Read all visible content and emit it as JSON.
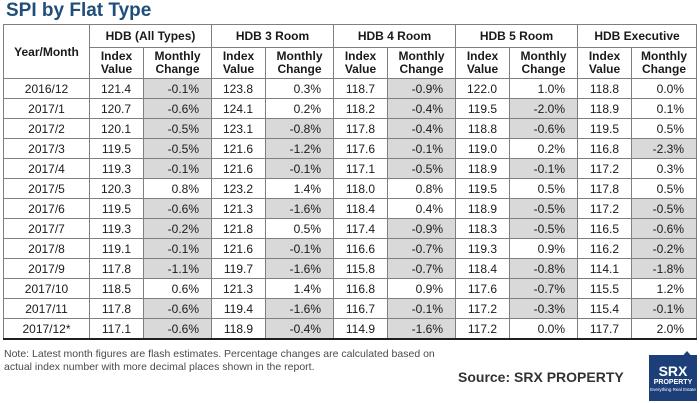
{
  "title": "SPI by Flat Type",
  "header": {
    "year_month": "Year/Month",
    "groups": [
      "HDB (All Types)",
      "HDB 3 Room",
      "HDB 4 Room",
      "HDB 5 Room",
      "HDB Executive"
    ],
    "sub_index": "Index Value",
    "sub_change": "Monthly Change"
  },
  "rows": [
    {
      "date": "2016/12",
      "v": [
        "121.4",
        "-0.1%",
        "123.8",
        "0.3%",
        "118.7",
        "-0.9%",
        "122.0",
        "1.0%",
        "118.8",
        "0.0%"
      ]
    },
    {
      "date": "2017/1",
      "v": [
        "120.7",
        "-0.6%",
        "124.1",
        "0.2%",
        "118.2",
        "-0.4%",
        "119.5",
        "-2.0%",
        "118.9",
        "0.1%"
      ]
    },
    {
      "date": "2017/2",
      "v": [
        "120.1",
        "-0.5%",
        "123.1",
        "-0.8%",
        "117.8",
        "-0.4%",
        "118.8",
        "-0.6%",
        "119.5",
        "0.5%"
      ]
    },
    {
      "date": "2017/3",
      "v": [
        "119.5",
        "-0.5%",
        "121.6",
        "-1.2%",
        "117.6",
        "-0.1%",
        "119.0",
        "0.2%",
        "116.8",
        "-2.3%"
      ]
    },
    {
      "date": "2017/4",
      "v": [
        "119.3",
        "-0.1%",
        "121.6",
        "-0.1%",
        "117.1",
        "-0.5%",
        "118.9",
        "-0.1%",
        "117.2",
        "0.3%"
      ]
    },
    {
      "date": "2017/5",
      "v": [
        "120.3",
        "0.8%",
        "123.2",
        "1.4%",
        "118.0",
        "0.8%",
        "119.5",
        "0.5%",
        "117.8",
        "0.5%"
      ]
    },
    {
      "date": "2017/6",
      "v": [
        "119.5",
        "-0.6%",
        "121.3",
        "-1.6%",
        "118.4",
        "0.4%",
        "118.9",
        "-0.5%",
        "117.2",
        "-0.5%"
      ]
    },
    {
      "date": "2017/7",
      "v": [
        "119.3",
        "-0.2%",
        "121.8",
        "0.5%",
        "117.4",
        "-0.9%",
        "118.3",
        "-0.5%",
        "116.5",
        "-0.6%"
      ]
    },
    {
      "date": "2017/8",
      "v": [
        "119.1",
        "-0.1%",
        "121.6",
        "-0.1%",
        "116.6",
        "-0.7%",
        "119.3",
        "0.9%",
        "116.2",
        "-0.2%"
      ]
    },
    {
      "date": "2017/9",
      "v": [
        "117.8",
        "-1.1%",
        "119.7",
        "-1.6%",
        "115.8",
        "-0.7%",
        "118.4",
        "-0.8%",
        "114.1",
        "-1.8%"
      ]
    },
    {
      "date": "2017/10",
      "v": [
        "118.5",
        "0.6%",
        "121.3",
        "1.4%",
        "116.8",
        "0.9%",
        "117.6",
        "-0.7%",
        "115.5",
        "1.2%"
      ]
    },
    {
      "date": "2017/11",
      "v": [
        "117.8",
        "-0.6%",
        "119.4",
        "-1.6%",
        "116.7",
        "-0.1%",
        "117.2",
        "-0.3%",
        "115.4",
        "-0.1%"
      ]
    },
    {
      "date": "2017/12*",
      "v": [
        "117.1",
        "-0.6%",
        "118.9",
        "-0.4%",
        "114.9",
        "-1.6%",
        "117.2",
        "0.0%",
        "117.7",
        "2.0%"
      ]
    }
  ],
  "note": "Note: Latest month figures are flash estimates. Percentage changes are calculated based on actual index number with more decimal places shown in the report.",
  "source": "Source:  SRX PROPERTY",
  "logo": {
    "line1": "SRX",
    "line2": "PROPERTY",
    "line3": "Everything Real Estate"
  },
  "colors": {
    "title": "#1f4e79",
    "negative_shade": "#d9d9d9",
    "logo_bg": "#1c3f7a"
  }
}
